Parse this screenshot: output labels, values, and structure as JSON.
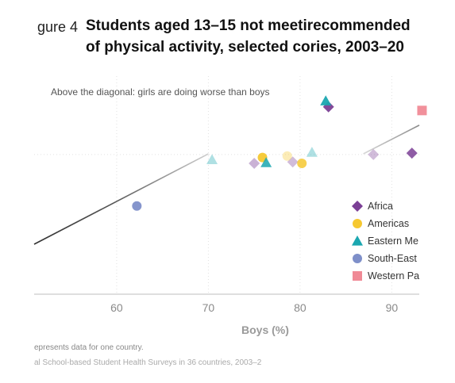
{
  "figure": {
    "label": "gure 4",
    "title_line1": "Students aged 13–15 not meetirecommended",
    "title_line2": "of physical activity, selected cories, 2003–20",
    "note_top": "Above the diagonal: girls are doing worse than boys",
    "footnote_1": "epresents data for one country.",
    "footnote_2": "al School-based Student Health Surveys in 36 countries, 2003–2"
  },
  "colors": {
    "Africa": "#7b3f95",
    "Americas": "#f6c830",
    "Eastern Mediterranean": "#1aa7b0",
    "South-East Asia": "#7e8fc9",
    "Western Pacific": "#f08a96"
  },
  "legend": [
    {
      "label": "Africa",
      "shape": "diamond",
      "color": "#7b3f95"
    },
    {
      "label": "Americas",
      "shape": "circle",
      "color": "#f6c830"
    },
    {
      "label": "Eastern Me",
      "shape": "triangle",
      "color": "#1aa7b0"
    },
    {
      "label": "South-East",
      "shape": "circle",
      "color": "#7e8fc9"
    },
    {
      "label": "Western Pa",
      "shape": "square",
      "color": "#f08a96"
    }
  ],
  "chart_data": {
    "type": "scatter",
    "title": "Students aged 13–15 not meetirecommended of physical activity, selected cories, 2003–20",
    "xlabel": "Boys (%)",
    "ylabel": "",
    "xlim": [
      51,
      93
    ],
    "ylim": [
      70,
      100
    ],
    "x_ticks": [
      60,
      70,
      80,
      90
    ],
    "grid": true,
    "legend_position": "right",
    "diagonal": "y = x",
    "series": [
      {
        "name": "Africa",
        "marker": "diamond",
        "points": [
          [
            83.1,
            95.5
          ],
          [
            88.0,
            89.0
          ],
          [
            92.2,
            89.2
          ],
          [
            79.2,
            88.0
          ],
          [
            75.0,
            87.8
          ]
        ]
      },
      {
        "name": "Americas",
        "marker": "circle",
        "points": [
          [
            75.9,
            88.6
          ],
          [
            78.6,
            88.8
          ],
          [
            80.2,
            87.8
          ]
        ]
      },
      {
        "name": "Eastern Mediterranean",
        "marker": "triangle",
        "points": [
          [
            82.8,
            96.3
          ],
          [
            70.4,
            88.3
          ],
          [
            76.3,
            87.9
          ],
          [
            81.3,
            89.3
          ]
        ]
      },
      {
        "name": "South-East Asia",
        "marker": "circle",
        "points": [
          [
            62.2,
            82.0
          ]
        ]
      },
      {
        "name": "Western Pacific",
        "marker": "square",
        "points": [
          [
            93.3,
            95.0
          ]
        ]
      }
    ]
  }
}
